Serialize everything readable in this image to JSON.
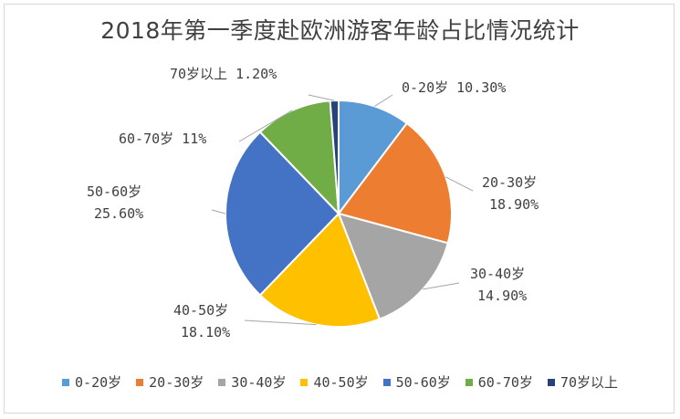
{
  "chart_data": {
    "type": "pie",
    "title": "2018年第一季度赴欧洲游客年龄占比情况统计",
    "slices": [
      {
        "label": "0-20岁",
        "value": 10.3,
        "display": "10.30%",
        "color": "#5b9bd5"
      },
      {
        "label": "20-30岁",
        "value": 18.9,
        "display": "18.90%",
        "color": "#ed7d31"
      },
      {
        "label": "30-40岁",
        "value": 14.9,
        "display": "14.90%",
        "color": "#a5a5a5"
      },
      {
        "label": "40-50岁",
        "value": 18.1,
        "display": "18.10%",
        "color": "#ffc000"
      },
      {
        "label": "50-60岁",
        "value": 25.6,
        "display": "25.60%",
        "color": "#4472c4"
      },
      {
        "label": "60-70岁",
        "value": 11,
        "display": "11%",
        "color": "#70ad47"
      },
      {
        "label": "70岁以上",
        "value": 1.2,
        "display": "1.20%",
        "color": "#264478"
      }
    ],
    "legend_position": "bottom"
  }
}
